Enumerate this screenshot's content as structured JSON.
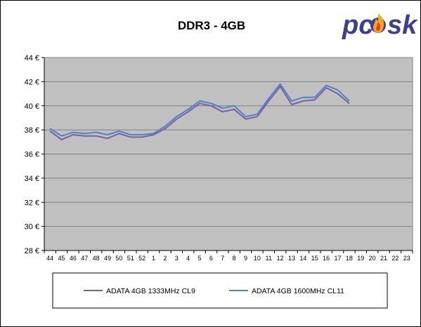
{
  "chart_data": {
    "type": "line",
    "title": "DDR3 - 4GB",
    "xlabel": "",
    "ylabel": "",
    "categories": [
      "44",
      "45",
      "46",
      "47",
      "48",
      "49",
      "50",
      "51",
      "52",
      "1",
      "2",
      "3",
      "4",
      "5",
      "6",
      "7",
      "8",
      "9",
      "10",
      "11",
      "12",
      "13",
      "14",
      "15",
      "16",
      "17",
      "18",
      "19",
      "20",
      "21",
      "22",
      "23"
    ],
    "ylim": [
      28,
      44
    ],
    "yticks": [
      28,
      30,
      32,
      34,
      36,
      38,
      40,
      42,
      44
    ],
    "ytick_labels": [
      "28 €",
      "30 €",
      "32 €",
      "34 €",
      "36 €",
      "38 €",
      "40 €",
      "42 €",
      "44 €"
    ],
    "grid": true,
    "legend_position": "bottom",
    "series": [
      {
        "name": "ADATA 4GB 1333MHz CL9",
        "color": "#7b5ea7",
        "values": [
          37.9,
          37.2,
          37.6,
          37.5,
          37.5,
          37.3,
          37.7,
          37.4,
          37.4,
          37.6,
          38.1,
          38.9,
          39.5,
          40.2,
          40.0,
          39.5,
          39.7,
          38.9,
          39.1,
          40.4,
          41.6,
          40.1,
          40.4,
          40.5,
          41.5,
          41.0,
          40.2,
          null,
          null,
          null,
          null,
          null
        ]
      },
      {
        "name": "ADATA 4GB 1600MHz CL11",
        "color": "#4a86c5",
        "values": [
          38.1,
          37.5,
          37.8,
          37.7,
          37.8,
          37.6,
          37.9,
          37.6,
          37.6,
          37.7,
          38.3,
          39.1,
          39.7,
          40.4,
          40.2,
          39.8,
          40.0,
          39.1,
          39.3,
          40.6,
          41.8,
          40.4,
          40.7,
          40.7,
          41.7,
          41.3,
          40.4,
          null,
          null,
          null,
          null,
          null
        ]
      }
    ]
  },
  "logo": {
    "text": "pcøsk",
    "colors": {
      "main": "#3f3f8f",
      "flame": "#f5a623",
      "flame_inner": "#e8421e"
    }
  },
  "colors": {
    "plot_background": "#c0c0c0",
    "grid": "#808080"
  }
}
